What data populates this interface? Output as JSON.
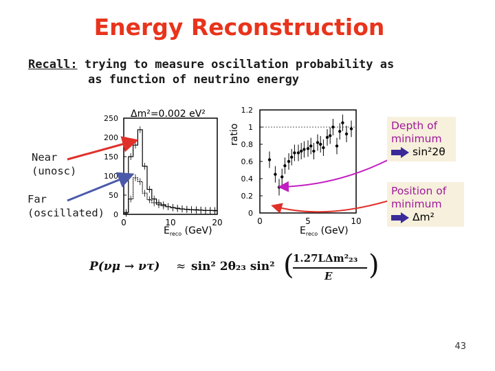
{
  "title": "Energy Reconstruction",
  "recall": {
    "label": "Recall:",
    "line1": " trying to measure oscillation probability as",
    "line2": "as function of neutrino energy"
  },
  "labels": {
    "near_1": "Near",
    "near_2": "(unosc)",
    "far_1": "Far",
    "far_2": "(oscillated)"
  },
  "left_plot": {
    "annotation": "Δm²=0.002 eV²",
    "y_ticks": [
      "250",
      "200",
      "150",
      "100",
      "50",
      "0"
    ],
    "x_ticks": [
      "0",
      "10",
      "20"
    ],
    "xlabel_main": "E",
    "xlabel_sub": "reco",
    "xlabel_unit": " (GeV)"
  },
  "right_plot": {
    "ylabel": "ratio",
    "y_ticks": [
      "1.2",
      "1",
      "0.8",
      "0.6",
      "0.4",
      "0.2",
      "0"
    ],
    "x_ticks": [
      "0",
      "5",
      "10"
    ],
    "xlabel_main": "E",
    "xlabel_sub": "reco",
    "xlabel_unit": " (GeV)"
  },
  "callouts": {
    "depth_l1": "Depth of",
    "depth_l2": "minimum",
    "depth_sym": "sin²2θ",
    "pos_l1": "Position of",
    "pos_l2": "minimum",
    "pos_sym": "Δm²"
  },
  "equation": {
    "lhs": "P(νμ → ντ)",
    "approx": "≈",
    "sin2": "sin² 2θ₂₃ sin²",
    "numer": "1.27LΔm²₂₃",
    "denom": "E"
  },
  "page_number": "43",
  "colors": {
    "title": "#e8341c",
    "arrow_red": "#e0302a",
    "arrow_blue": "#4a5aa8",
    "arrow_magenta": "#c21ec0",
    "callout_bg": "#f7f0dc"
  },
  "chart_data": [
    {
      "type": "bar",
      "title": "Δm²=0.002 eV²",
      "xlabel": "Ereco (GeV)",
      "ylabel": "",
      "xlim": [
        0,
        20
      ],
      "ylim": [
        0,
        250
      ],
      "series": [
        {
          "x": [
            0.5,
            1.5,
            2.5,
            3.5,
            4.5,
            5.5,
            6.5,
            7.5,
            8.5,
            9.5,
            10.5,
            11.5,
            12.5,
            13.5,
            14.5,
            15.5,
            16.5,
            17.5,
            18.5,
            19.5
          ],
          "values": [
            5,
            150,
            180,
            220,
            125,
            65,
            40,
            30,
            25,
            20,
            18,
            16,
            14,
            13,
            12,
            12,
            11,
            10,
            10,
            10
          ]
        },
        {
          "x": [
            0.5,
            1.5,
            2.5,
            3.5,
            4.5,
            5.5,
            6.5,
            7.5,
            8.5,
            9.5,
            10.5,
            11.5,
            12.5,
            13.5,
            14.5,
            15.5,
            16.5,
            17.5,
            18.5,
            19.5
          ],
          "values": [
            3,
            40,
            95,
            85,
            55,
            38,
            30,
            25,
            22,
            20,
            17,
            15,
            14,
            13,
            12,
            11,
            11,
            10,
            10,
            9
          ]
        }
      ]
    },
    {
      "type": "scatter",
      "xlabel": "Ereco (GeV)",
      "ylabel": "ratio",
      "xlim": [
        0,
        10
      ],
      "ylim": [
        0,
        1.2
      ],
      "reference_line": 1,
      "series": [
        {
          "x": [
            1.0,
            1.6,
            2.0,
            2.3,
            2.6,
            3.0,
            3.3,
            3.6,
            4.0,
            4.3,
            4.6,
            5.0,
            5.3,
            5.6,
            6.0,
            6.3,
            6.6,
            7.0,
            7.3,
            7.6,
            8.0,
            8.3,
            8.6,
            9.0,
            9.5
          ],
          "values": [
            0.62,
            0.45,
            0.3,
            0.42,
            0.55,
            0.6,
            0.65,
            0.7,
            0.7,
            0.72,
            0.74,
            0.75,
            0.78,
            0.72,
            0.82,
            0.8,
            0.76,
            0.88,
            0.9,
            1.0,
            0.78,
            0.95,
            1.05,
            0.92,
            0.98
          ]
        }
      ]
    }
  ]
}
